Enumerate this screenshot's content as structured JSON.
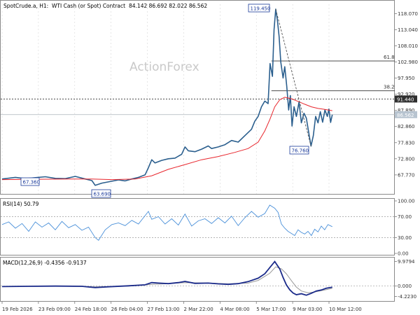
{
  "header": {
    "symbol": "SpotCrude.a, H1:",
    "description": "WTI Cash (or Spot) Contract",
    "ohlc": "84.142 86.692 82.022 86.562"
  },
  "watermark": "ActionForex",
  "colors": {
    "price_line": "#2b5f8e",
    "moving_average": "#e8262d",
    "rsi_line": "#4a90d9",
    "macd_line": "#1a2a8a",
    "macd_signal": "#9a9a9a",
    "trend_dash": "#555555",
    "level_line": "#333333",
    "current_price_tag": "#b8c4d0",
    "grid": "#d7d7d7"
  },
  "price_labels": {
    "high": "119.450",
    "start": "67.360",
    "low": "63.690",
    "recent_low": "76.760",
    "level": "91.440",
    "current": "86.562",
    "fib_618": "61.8",
    "fib_382": "38.2"
  },
  "rsi_panel": {
    "title": "RSI(14) 50.79"
  },
  "macd_panel": {
    "title": "MACD(12,26,9) -0.4356 -0.9137"
  },
  "chart_data": [
    {
      "type": "line",
      "panel": "price",
      "ylim": [
        62.5,
        121.0
      ],
      "y_ticks": [
        "118.070",
        "113.040",
        "108.010",
        "102.980",
        "97.950",
        "92.920",
        "87.890",
        "82.860",
        "77.830",
        "72.800",
        "67.770"
      ],
      "x_ticks": [
        "19 Feb 2026",
        "23 Feb 09:00",
        "24 Feb 18:00",
        "26 Feb 04:00",
        "27 Feb 13:00",
        "2 Mar 22:00",
        "4 Mar 08:00",
        "5 Mar 17:00",
        "9 Mar 03:00",
        "10 Mar 12:00"
      ],
      "x_range": [
        0,
        100
      ],
      "series": [
        {
          "values": [
            [
              0,
              66.5
            ],
            [
              4,
              67.0
            ],
            [
              7,
              66.6
            ],
            [
              10,
              66.9
            ],
            [
              13,
              67.2
            ],
            [
              16,
              66.7
            ],
            [
              19,
              66.6
            ],
            [
              22,
              67.3
            ],
            [
              25,
              66.5
            ],
            [
              27,
              66.0
            ],
            [
              28,
              64.5
            ],
            [
              30,
              65.2
            ],
            [
              33,
              65.8
            ],
            [
              35,
              66.2
            ],
            [
              37,
              65.9
            ],
            [
              39,
              66.5
            ],
            [
              41,
              67.0
            ],
            [
              43,
              67.8
            ],
            [
              44,
              70.0
            ],
            [
              45,
              72.5
            ],
            [
              46,
              71.5
            ],
            [
              48,
              72.3
            ],
            [
              50,
              72.8
            ],
            [
              52,
              73.0
            ],
            [
              54,
              74.2
            ],
            [
              55,
              76.5
            ],
            [
              56,
              75.3
            ],
            [
              58,
              75.0
            ],
            [
              60,
              75.8
            ],
            [
              62,
              76.8
            ],
            [
              63,
              76.0
            ],
            [
              65,
              76.5
            ],
            [
              67,
              77.2
            ],
            [
              69,
              78.5
            ],
            [
              71,
              78.0
            ],
            [
              73,
              80.0
            ],
            [
              75,
              82.0
            ],
            [
              76,
              84.5
            ],
            [
              77,
              86.0
            ],
            [
              78,
              89.0
            ],
            [
              79,
              90.8
            ],
            [
              80,
              90.0
            ],
            [
              80.6,
              102.5
            ],
            [
              81.3,
              98.5
            ],
            [
              81.8,
              113.0
            ],
            [
              82.3,
              119.45
            ],
            [
              82.8,
              116.0
            ],
            [
              83.3,
              111.0
            ],
            [
              83.8,
              103.0
            ],
            [
              84.5,
              98.0
            ],
            [
              85.0,
              101.5
            ],
            [
              85.6,
              95.5
            ],
            [
              86.2,
              88.0
            ],
            [
              86.7,
              92.5
            ],
            [
              87.2,
              83.0
            ],
            [
              87.8,
              89.0
            ],
            [
              88.5,
              86.0
            ],
            [
              89.3,
              90.5
            ],
            [
              90.0,
              84.0
            ],
            [
              90.8,
              87.0
            ],
            [
              91.5,
              85.5
            ],
            [
              92.3,
              80.5
            ],
            [
              92.9,
              76.76
            ],
            [
              93.6,
              80.0
            ],
            [
              94.3,
              86.0
            ],
            [
              95.0,
              84.0
            ],
            [
              95.7,
              87.5
            ],
            [
              96.4,
              84.2
            ],
            [
              97.1,
              88.0
            ],
            [
              97.8,
              86.0
            ],
            [
              98.3,
              88.3
            ],
            [
              98.8,
              84.14
            ],
            [
              99.3,
              86.56
            ]
          ]
        },
        {
          "values": [
            [
              0,
              66.3
            ],
            [
              10,
              66.4
            ],
            [
              20,
              66.5
            ],
            [
              27,
              66.5
            ],
            [
              33,
              66.3
            ],
            [
              40,
              66.5
            ],
            [
              45,
              67.5
            ],
            [
              50,
              69.5
            ],
            [
              55,
              71.0
            ],
            [
              60,
              72.5
            ],
            [
              65,
              73.5
            ],
            [
              70,
              74.8
            ],
            [
              74,
              76.0
            ],
            [
              77,
              78.0
            ],
            [
              79,
              81.5
            ],
            [
              80.5,
              85.0
            ],
            [
              82,
              89.0
            ],
            [
              83.5,
              91.2
            ],
            [
              85,
              92.0
            ],
            [
              87,
              91.5
            ],
            [
              89,
              90.7
            ],
            [
              91,
              89.8
            ],
            [
              93,
              89.0
            ],
            [
              95,
              88.5
            ],
            [
              97,
              88.2
            ],
            [
              99.3,
              87.8
            ]
          ]
        }
      ],
      "horizontal_levels": [
        91.44,
        86.562
      ],
      "fib_levels": [
        {
          "label": "61.8",
          "value": 103.3
        },
        {
          "label": "38.2",
          "value": 94.0
        }
      ],
      "trendlines": [
        {
          "from": [
            82.3,
            119.45
          ],
          "to": [
            92.9,
            76.76
          ]
        }
      ]
    },
    {
      "type": "line",
      "panel": "rsi",
      "title": "RSI(14) 50.79",
      "ylim": [
        0,
        100
      ],
      "y_ticks": [
        "100.00",
        "70.00",
        "30.00",
        "0.00"
      ],
      "levels": [
        70,
        30
      ],
      "values": [
        [
          0,
          55
        ],
        [
          2,
          60
        ],
        [
          4,
          48
        ],
        [
          6,
          57
        ],
        [
          8,
          42
        ],
        [
          10,
          60
        ],
        [
          12,
          50
        ],
        [
          14,
          58
        ],
        [
          16,
          45
        ],
        [
          18,
          61
        ],
        [
          20,
          49
        ],
        [
          22,
          55
        ],
        [
          24,
          44
        ],
        [
          26,
          50
        ],
        [
          28,
          30
        ],
        [
          29,
          25
        ],
        [
          31,
          45
        ],
        [
          33,
          55
        ],
        [
          35,
          58
        ],
        [
          37,
          53
        ],
        [
          39,
          63
        ],
        [
          41,
          56
        ],
        [
          43,
          72
        ],
        [
          44,
          80
        ],
        [
          45,
          65
        ],
        [
          47,
          70
        ],
        [
          49,
          56
        ],
        [
          51,
          66
        ],
        [
          53,
          54
        ],
        [
          55,
          75
        ],
        [
          57,
          52
        ],
        [
          59,
          62
        ],
        [
          61,
          66
        ],
        [
          63,
          57
        ],
        [
          65,
          68
        ],
        [
          67,
          58
        ],
        [
          69,
          71
        ],
        [
          71,
          53
        ],
        [
          73,
          68
        ],
        [
          75,
          80
        ],
        [
          77,
          69
        ],
        [
          79,
          76
        ],
        [
          80.5,
          92
        ],
        [
          82,
          86
        ],
        [
          83,
          78
        ],
        [
          84,
          56
        ],
        [
          85,
          48
        ],
        [
          86,
          42
        ],
        [
          87,
          38
        ],
        [
          88,
          34
        ],
        [
          89,
          45
        ],
        [
          90,
          40
        ],
        [
          91,
          37
        ],
        [
          92,
          42
        ],
        [
          93,
          34
        ],
        [
          94,
          46
        ],
        [
          95,
          41
        ],
        [
          96,
          52
        ],
        [
          97,
          45
        ],
        [
          98,
          55
        ],
        [
          99.3,
          51
        ]
      ]
    },
    {
      "type": "line",
      "panel": "macd",
      "title": "MACD(12,26,9) -0.4356 -0.9137",
      "ylim": [
        -5.5,
        11.0
      ],
      "y_ticks": [
        "9.9794",
        "0.000",
        "-4.2230"
      ],
      "series": [
        {
          "values": [
            [
              0,
              -0.2
            ],
            [
              8,
              -0.1
            ],
            [
              16,
              0.0
            ],
            [
              24,
              -0.1
            ],
            [
              28,
              -0.6
            ],
            [
              32,
              -0.3
            ],
            [
              38,
              0.1
            ],
            [
              43,
              0.5
            ],
            [
              45,
              1.4
            ],
            [
              47,
              1.2
            ],
            [
              50,
              1.0
            ],
            [
              53,
              1.4
            ],
            [
              55,
              1.9
            ],
            [
              58,
              1.1
            ],
            [
              62,
              1.2
            ],
            [
              65,
              0.9
            ],
            [
              68,
              0.7
            ],
            [
              71,
              1.0
            ],
            [
              74,
              1.8
            ],
            [
              77,
              3.2
            ],
            [
              79,
              5.0
            ],
            [
              80.5,
              7.5
            ],
            [
              82,
              9.98
            ],
            [
              83.5,
              7.0
            ],
            [
              84.5,
              3.5
            ],
            [
              85.5,
              0.5
            ],
            [
              86.5,
              -1.5
            ],
            [
              87.5,
              -2.8
            ],
            [
              88.5,
              -3.5
            ],
            [
              90,
              -3.1
            ],
            [
              91.5,
              -3.7
            ],
            [
              92.9,
              -3.0
            ],
            [
              94.5,
              -2.0
            ],
            [
              96,
              -1.6
            ],
            [
              97.5,
              -0.9
            ],
            [
              99.3,
              -0.44
            ]
          ]
        },
        {
          "values": [
            [
              0,
              -0.1
            ],
            [
              16,
              0.0
            ],
            [
              28,
              -0.3
            ],
            [
              38,
              0.0
            ],
            [
              45,
              0.7
            ],
            [
              50,
              1.0
            ],
            [
              55,
              1.4
            ],
            [
              62,
              1.2
            ],
            [
              68,
              0.9
            ],
            [
              74,
              1.2
            ],
            [
              77,
              2.3
            ],
            [
              80.5,
              5.2
            ],
            [
              82.3,
              7.8
            ],
            [
              84,
              7.0
            ],
            [
              85.5,
              5.0
            ],
            [
              87,
              2.2
            ],
            [
              88.5,
              -0.4
            ],
            [
              90,
              -2.0
            ],
            [
              92,
              -2.7
            ],
            [
              94,
              -2.4
            ],
            [
              96,
              -1.9
            ],
            [
              98,
              -1.3
            ],
            [
              99.3,
              -0.91
            ]
          ]
        }
      ]
    }
  ]
}
